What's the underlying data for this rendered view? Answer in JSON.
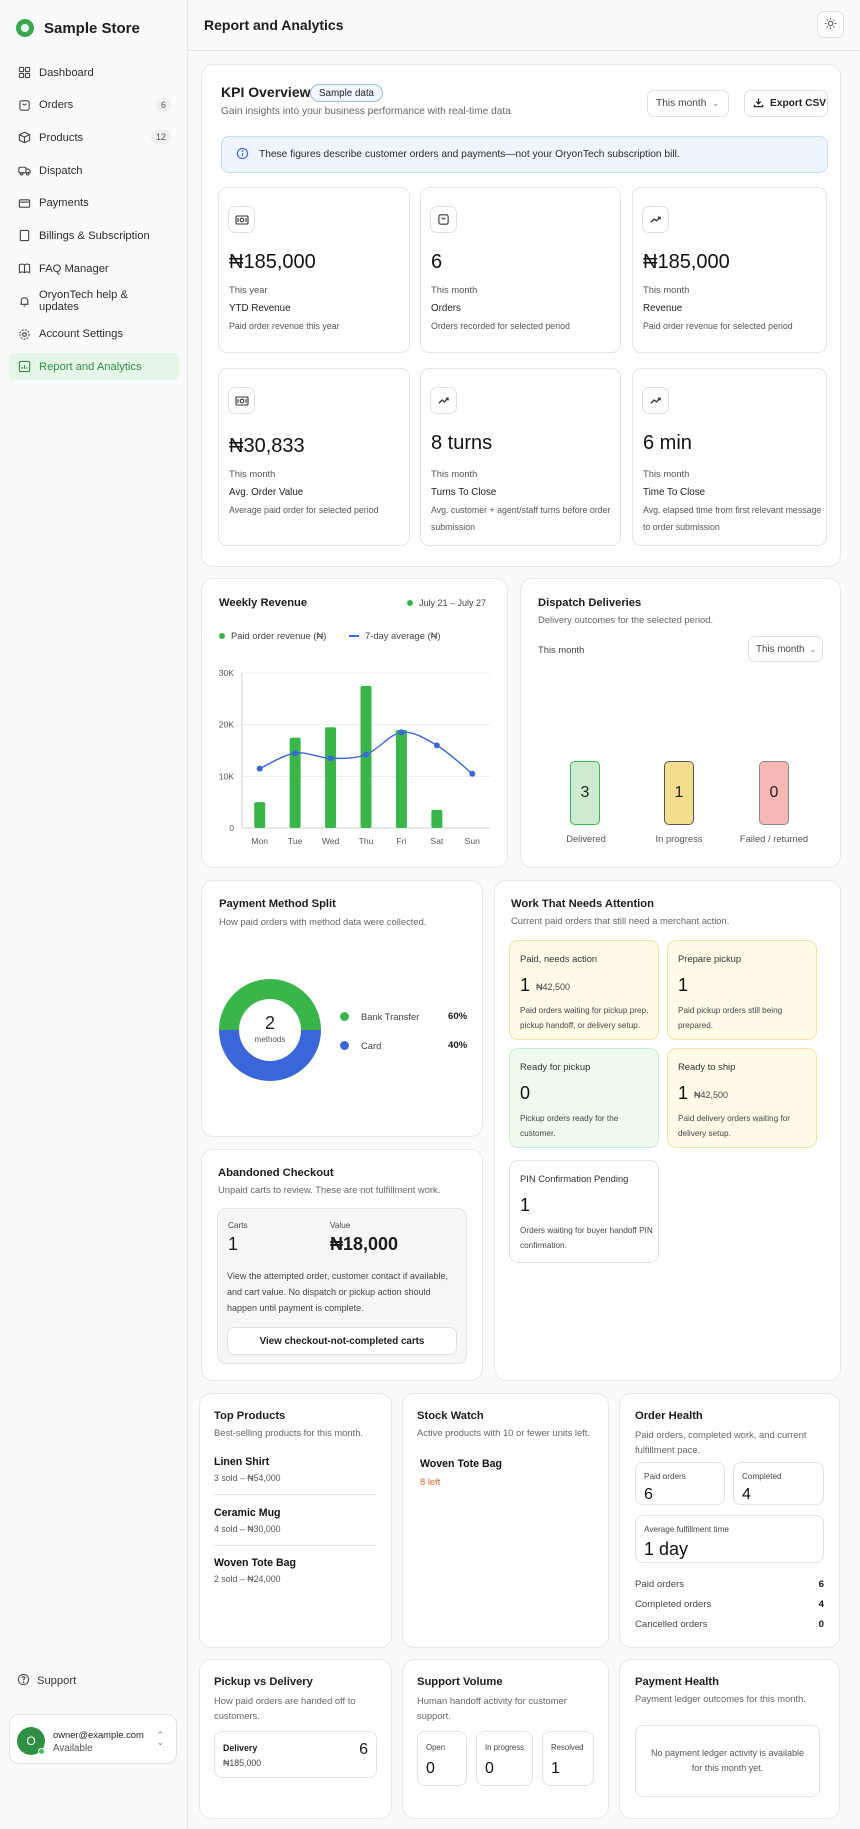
{
  "sidebar": {
    "store_name": "Sample Store",
    "items": [
      {
        "label": "Dashboard",
        "badge": ""
      },
      {
        "label": "Orders",
        "badge": "6"
      },
      {
        "label": "Products",
        "badge": "12"
      },
      {
        "label": "Dispatch",
        "badge": ""
      },
      {
        "label": "Payments",
        "badge": ""
      },
      {
        "label": "Billings & Subscription",
        "badge": ""
      },
      {
        "label": "FAQ Manager",
        "badge": ""
      },
      {
        "label": "OryonTech help & updates",
        "badge": ""
      },
      {
        "label": "Account Settings",
        "badge": ""
      },
      {
        "label": "Report and Analytics",
        "badge": ""
      }
    ],
    "support_label": "Support",
    "user": {
      "initial": "O",
      "email": "owner@example.com",
      "status": "Available"
    }
  },
  "header": {
    "title": "Report and Analytics"
  },
  "kpi": {
    "title": "KPI Overview",
    "badge": "Sample data",
    "subtitle": "Gain insights into your business performance with real-time data",
    "period_select": "This month",
    "export_label": "Export CSV",
    "banner": "These figures describe customer orders and payments—not your OryonTech subscription bill.",
    "cards": [
      {
        "icon": "money-icon",
        "value": "₦185,000",
        "period": "This year",
        "label": "YTD Revenue",
        "desc": "Paid order revenue this year"
      },
      {
        "icon": "orders-icon",
        "value": "6",
        "period": "This month",
        "label": "Orders",
        "desc": "Orders recorded for selected period"
      },
      {
        "icon": "trend-icon",
        "value": "₦185,000",
        "period": "This month",
        "label": "Revenue",
        "desc": "Paid order revenue for selected period"
      },
      {
        "icon": "money-icon",
        "value": "₦30,833",
        "period": "This month",
        "label": "Avg. Order Value",
        "desc": "Average paid order for selected period"
      },
      {
        "icon": "trend-icon",
        "value": "8 turns",
        "period": "This month",
        "label": "Turns To Close",
        "desc": "Avg. customer + agent/staff turns before order submission"
      },
      {
        "icon": "trend-icon",
        "value": "6 min",
        "period": "This month",
        "label": "Time To Close",
        "desc": "Avg. elapsed time from first relevant message to order submission"
      }
    ]
  },
  "weekly": {
    "title": "Weekly Revenue",
    "range": "July 21 – July 27",
    "legend_bar": "Paid order revenue (₦)",
    "legend_line": "7-day average (₦)",
    "colors": {
      "bar": "#3ab54a",
      "line": "#3a66d9"
    }
  },
  "chart_data": {
    "type": "bar",
    "title": "Weekly Revenue",
    "categories": [
      "Mon",
      "Tue",
      "Wed",
      "Thu",
      "Fri",
      "Sat",
      "Sun"
    ],
    "series": [
      {
        "name": "Paid order revenue (₦)",
        "type": "bar",
        "values": [
          5000,
          17500,
          19500,
          27500,
          19000,
          3500,
          0
        ]
      },
      {
        "name": "7-day average (₦)",
        "type": "line",
        "values": [
          11500,
          14500,
          13500,
          14200,
          18500,
          16000,
          10500
        ]
      }
    ],
    "yticks": [
      "0",
      "10K",
      "20K",
      "30K"
    ],
    "ylim": [
      0,
      30000
    ]
  },
  "dispatch": {
    "title": "Dispatch Deliveries",
    "subtitle": "Delivery outcomes for the selected period.",
    "period_label": "This month",
    "period_select": "This month",
    "items": [
      {
        "label": "Delivered",
        "value": "3",
        "color": "#cdeccf"
      },
      {
        "label": "In progress",
        "value": "1",
        "color": "#f6dc8e"
      },
      {
        "label": "Failed / returned",
        "value": "0",
        "color": "#f7b8b5"
      }
    ]
  },
  "payment_split": {
    "title": "Payment Method Split",
    "subtitle": "How paid orders with method data were collected.",
    "center_value": "2",
    "center_label": "methods",
    "methods": [
      {
        "label": "Bank Transfer",
        "pct": "60%",
        "color": "#3ab54a"
      },
      {
        "label": "Card",
        "pct": "40%",
        "color": "#3a66d9"
      }
    ]
  },
  "abandoned": {
    "title": "Abandoned Checkout",
    "subtitle": "Unpaid carts to review. These are not fulfillment work.",
    "carts_label": "Carts",
    "carts_value": "1",
    "value_label": "Value",
    "value_value": "₦18,000",
    "desc": "View the attempted order, customer contact if available, and cart value. No dispatch or pickup action should happen until payment is complete.",
    "button": "View checkout-not-completed carts"
  },
  "work": {
    "title": "Work That Needs Attention",
    "subtitle": "Current paid orders that still need a merchant action.",
    "tiles": [
      {
        "title": "Paid, needs action",
        "value": "1",
        "amount": "₦42,500",
        "desc": "Paid orders waiting for pickup prep, pickup handoff, or delivery setup."
      },
      {
        "title": "Prepare pickup",
        "value": "1",
        "amount": "",
        "desc": "Paid pickup orders still being prepared."
      },
      {
        "title": "Ready for pickup",
        "value": "0",
        "amount": "",
        "desc": "Pickup orders ready for the customer."
      },
      {
        "title": "Ready to ship",
        "value": "1",
        "amount": "₦42,500",
        "desc": "Paid delivery orders waiting for delivery setup."
      },
      {
        "title": "PIN Confirmation Pending",
        "value": "1",
        "amount": "",
        "desc": "Orders waiting for buyer handoff PIN confirmation."
      }
    ]
  },
  "top_products": {
    "title": "Top Products",
    "subtitle": "Best-selling products for this month.",
    "items": [
      {
        "name": "Linen Shirt",
        "sub": "3 sold – ₦54,000"
      },
      {
        "name": "Ceramic Mug",
        "sub": "4 sold – ₦30,000"
      },
      {
        "name": "Woven Tote Bag",
        "sub": "2 sold – ₦24,000"
      }
    ]
  },
  "stock_watch": {
    "title": "Stock Watch",
    "subtitle": "Active products with 10 or fewer units left.",
    "item_name": "Woven Tote Bag",
    "item_left": "8 left"
  },
  "order_health": {
    "title": "Order Health",
    "subtitle": "Paid orders, completed work, and current fulfillment pace.",
    "paid_label": "Paid orders",
    "paid_value": "6",
    "completed_label": "Completed",
    "completed_value": "4",
    "avg_label": "Average fulfillment time",
    "avg_value": "1 day",
    "rows": [
      {
        "label": "Paid orders",
        "value": "6"
      },
      {
        "label": "Completed orders",
        "value": "4"
      },
      {
        "label": "Cancelled orders",
        "value": "0"
      }
    ]
  },
  "pickup_delivery": {
    "title": "Pickup vs Delivery",
    "subtitle": "How paid orders are handed off to customers.",
    "label": "Delivery",
    "amount": "₦185,000",
    "count": "6"
  },
  "support_volume": {
    "title": "Support Volume",
    "subtitle": "Human handoff activity for customer support.",
    "items": [
      {
        "label": "Open",
        "value": "0"
      },
      {
        "label": "In progress",
        "value": "0"
      },
      {
        "label": "Resolved",
        "value": "1"
      }
    ]
  },
  "payment_health": {
    "title": "Payment Health",
    "subtitle": "Payment ledger outcomes for this month.",
    "empty": "No payment ledger activity is available for this month yet."
  }
}
